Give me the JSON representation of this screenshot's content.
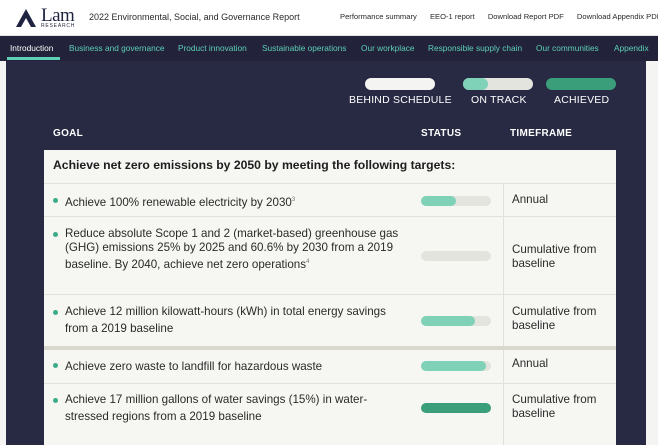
{
  "header": {
    "logo_word": "Lam",
    "logo_sub": "RESEARCH",
    "report_title": "2022 Environmental, Social, and Governance Report",
    "links": [
      "Performance summary",
      "EEO-1 report",
      "Download Report PDF",
      "Download Appendix PDF"
    ]
  },
  "nav": {
    "items": [
      "Introduction",
      "Business and governance",
      "Product innovation",
      "Sustainable operations",
      "Our workplace",
      "Responsible supply chain",
      "Our communities",
      "Appendix"
    ],
    "active_index": 0
  },
  "legend": [
    {
      "label": "BEHIND SCHEDULE",
      "fill": 0.0
    },
    {
      "label": "ON TRACK",
      "fill": 0.35
    },
    {
      "label": "ACHIEVED",
      "fill": 1.0
    }
  ],
  "table": {
    "headers": {
      "goal": "GOAL",
      "status": "STATUS",
      "timeframe": "TIMEFRAME"
    },
    "section1_title": "Achieve net zero emissions by 2050 by meeting the following targets:",
    "section1_rows": [
      {
        "goal": "Achieve 100% renewable electricity by 2030",
        "sup": "3",
        "status_fill": 0.5,
        "status_color": "#7fd1b8",
        "timeframe": "Annual"
      },
      {
        "goal": "Reduce absolute Scope 1 and 2 (market-based) greenhouse gas (GHG) emissions 25% by 2025 and 60.6% by 2030 from a 2019 baseline. By 2040, achieve net zero operations",
        "sup": "4",
        "status_fill": 0.0,
        "status_color": "#7fd1b8",
        "timeframe": "Cumulative from baseline"
      },
      {
        "goal": "Achieve 12 million kilowatt-hours (kWh) in total energy savings from a 2019 baseline",
        "sup": "",
        "status_fill": 0.77,
        "status_color": "#7fd1b8",
        "timeframe": "Cumulative from baseline"
      }
    ],
    "section2_rows": [
      {
        "goal": "Achieve zero waste to landfill for hazardous waste",
        "sup": "",
        "status_fill": 0.93,
        "status_color": "#7fd1b8",
        "timeframe": "Annual"
      },
      {
        "goal": "Achieve 17 million gallons of water savings (15%) in water-stressed regions from a 2019 baseline",
        "sup": "",
        "status_fill": 1.0,
        "status_color": "#3a9e7a",
        "timeframe": "Cumulative from baseline"
      }
    ]
  },
  "colors": {
    "nav_bg": "#22223a",
    "panel_bg": "#282a44",
    "accent": "#5ed0b8",
    "on_track": "#7fd1b8",
    "achieved": "#3a9e7a"
  }
}
